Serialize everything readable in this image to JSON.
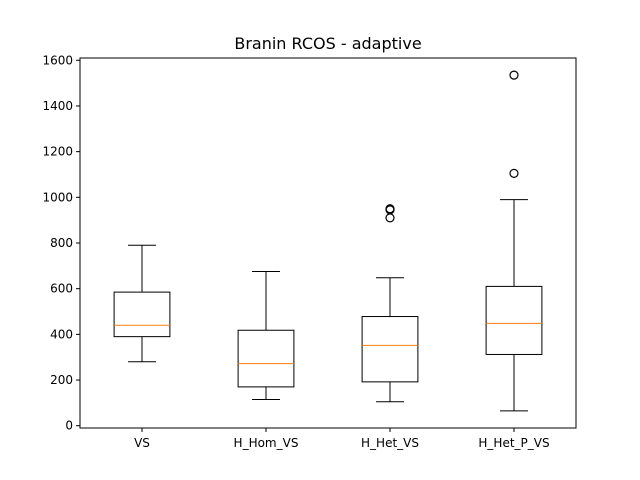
{
  "chart_data": {
    "type": "box",
    "title": "Branin RCOS - adaptive",
    "xlabel": "",
    "ylabel": "",
    "ylim": [
      -10,
      1610
    ],
    "yticks": [
      0,
      200,
      400,
      600,
      800,
      1000,
      1200,
      1400,
      1600
    ],
    "grid": false,
    "categories": [
      "VS",
      "H_Hom_VS",
      "H_Het_VS",
      "H_Het_P_VS"
    ],
    "boxes": [
      {
        "whisker_low": 280,
        "q1": 390,
        "median": 440,
        "q3": 585,
        "whisker_high": 790,
        "outliers": []
      },
      {
        "whisker_low": 115,
        "q1": 170,
        "median": 272,
        "q3": 418,
        "whisker_high": 675,
        "outliers": []
      },
      {
        "whisker_low": 105,
        "q1": 192,
        "median": 352,
        "q3": 478,
        "whisker_high": 648,
        "outliers": [
          910,
          945,
          950
        ]
      },
      {
        "whisker_low": 65,
        "q1": 312,
        "median": 448,
        "q3": 610,
        "whisker_high": 990,
        "outliers": [
          1105,
          1535
        ]
      }
    ],
    "colors": {
      "box": "#000000",
      "median": "#ff7f0e"
    }
  }
}
